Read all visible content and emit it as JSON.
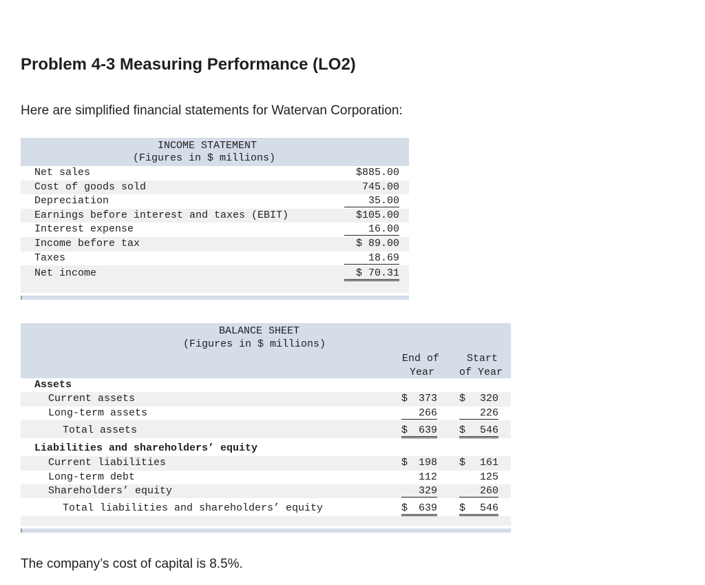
{
  "title": "Problem 4-3 Measuring Performance (LO2)",
  "intro": "Here are simplified financial statements for Watervan Corporation:",
  "income_statement": {
    "heading": "INCOME STATEMENT",
    "subheading": "(Figures in $ millions)",
    "rows": [
      {
        "label": "Net sales",
        "value": "$885.00"
      },
      {
        "label": "Cost of goods sold",
        "value": "745.00"
      },
      {
        "label": "Depreciation",
        "value": "35.00"
      },
      {
        "label": "Earnings before interest and taxes (EBIT)",
        "value": "$105.00"
      },
      {
        "label": "Interest expense",
        "value": "16.00"
      },
      {
        "label": "Income before tax",
        "value": "$ 89.00"
      },
      {
        "label": "Taxes",
        "value": "18.69"
      },
      {
        "label": "Net income",
        "value": "$ 70.31"
      }
    ]
  },
  "balance_sheet": {
    "heading": "BALANCE SHEET",
    "subheading": "(Figures in $ millions)",
    "col1_line1": "End of",
    "col1_line2": "Year",
    "col2_line1": "Start",
    "col2_line2": "of Year",
    "assets_header": "Assets",
    "current_assets": {
      "label": "Current assets",
      "end": "373",
      "start": "320"
    },
    "long_term_assets": {
      "label": "Long-term assets",
      "end": "266",
      "start": "226"
    },
    "total_assets": {
      "label": "Total assets",
      "end": "639",
      "start": "546"
    },
    "liab_header": "Liabilities and shareholders’ equity",
    "current_liabilities": {
      "label": "Current liabilities",
      "end": "198",
      "start": "161"
    },
    "long_term_debt": {
      "label": "Long-term debt",
      "end": "112",
      "start": "125"
    },
    "shareholders_equity": {
      "label": "Shareholders’ equity",
      "end": "329",
      "start": "260"
    },
    "total_liab_equity": {
      "label": "Total liabilities and shareholders’ equity",
      "end": "639",
      "start": "546"
    },
    "dollar": "$"
  },
  "footer": "The company’s cost of capital is 8.5%."
}
